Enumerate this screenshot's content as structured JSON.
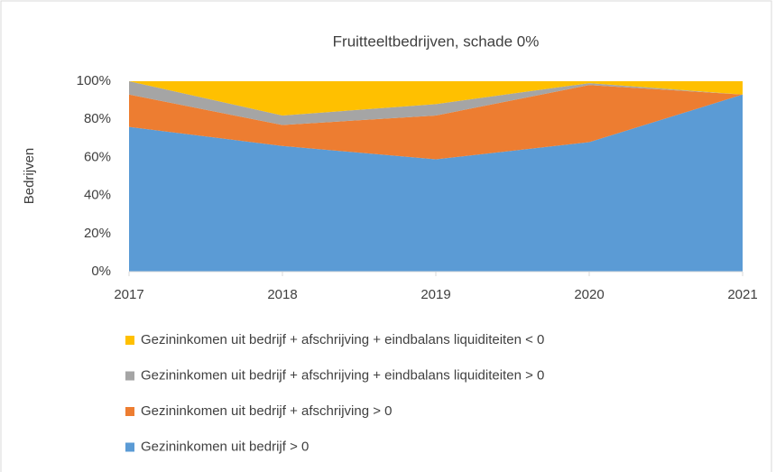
{
  "chart_data": {
    "type": "area",
    "title": "Fruitteeltbedrijven, schade 0%",
    "y_label": "Bedrijven",
    "stacked": true,
    "categories": [
      "2017",
      "2018",
      "2019",
      "2020",
      "2021"
    ],
    "series": [
      {
        "name": "Gezininkomen uit bedrijf > 0",
        "color": "#5b9bd5",
        "values": [
          76,
          66,
          59,
          68,
          93
        ]
      },
      {
        "name": "Gezininkomen uit bedrijf + afschrijving > 0",
        "color": "#ed7d31",
        "values": [
          17,
          11,
          23,
          30,
          0
        ]
      },
      {
        "name": "Gezininkomen uit bedrijf + afschrijving + eindbalans liquiditeiten > 0",
        "color": "#a5a5a5",
        "values": [
          7,
          5,
          6,
          1,
          0
        ]
      },
      {
        "name": "Gezininkomen uit bedrijf + afschrijving + eindbalans liquiditeiten < 0",
        "color": "#ffc000",
        "values": [
          0,
          18,
          12,
          1,
          7
        ]
      }
    ],
    "ylim": [
      0,
      100
    ],
    "yticks": [
      {
        "value": 0,
        "label": "0%"
      },
      {
        "value": 20,
        "label": "20%"
      },
      {
        "value": 40,
        "label": "40%"
      },
      {
        "value": 60,
        "label": "60%"
      },
      {
        "value": 80,
        "label": "80%"
      },
      {
        "value": 100,
        "label": "100%"
      }
    ],
    "grid": false,
    "legend": "bottom"
  }
}
